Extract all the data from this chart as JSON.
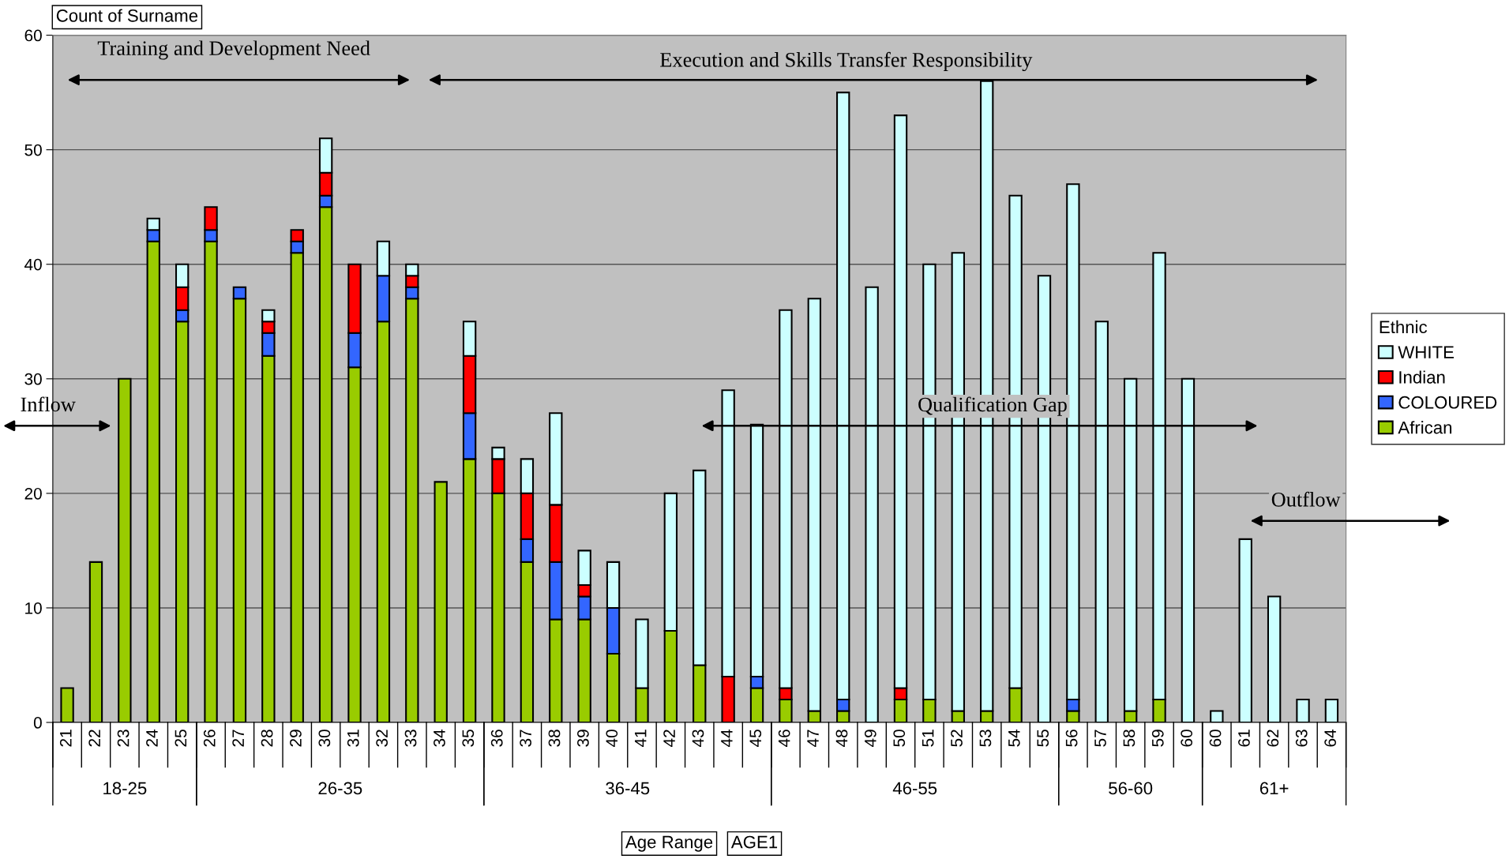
{
  "chart_data": {
    "type": "bar",
    "stacked": true,
    "ylabel": "Count of Surname",
    "legend_title": "Ethnic",
    "legend": "right",
    "grid": "y",
    "categories": [
      "21",
      "22",
      "23",
      "24",
      "25",
      "26",
      "27",
      "28",
      "29",
      "30",
      "31",
      "32",
      "33",
      "34",
      "35",
      "36",
      "37",
      "38",
      "39",
      "40",
      "41",
      "42",
      "43",
      "44",
      "45",
      "46",
      "47",
      "48",
      "49",
      "50",
      "51",
      "52",
      "53",
      "54",
      "55",
      "56",
      "57",
      "58",
      "59",
      "60",
      "60",
      "61",
      "62",
      "63",
      "64"
    ],
    "ylim": [
      0,
      60
    ],
    "yticks": [
      0,
      10,
      20,
      30,
      40,
      50,
      60
    ],
    "series": [
      {
        "name": "African",
        "color": "#99cc00",
        "values": [
          3,
          14,
          30,
          42,
          35,
          42,
          37,
          32,
          41,
          45,
          31,
          35,
          37,
          21,
          23,
          20,
          14,
          9,
          9,
          6,
          3,
          8,
          5,
          0,
          3,
          2,
          1,
          1,
          0,
          2,
          2,
          1,
          1,
          3,
          0,
          1,
          0,
          1,
          2,
          0,
          0,
          0,
          0,
          0,
          0
        ]
      },
      {
        "name": "COLOURED",
        "color": "#3366ff",
        "values": [
          0,
          0,
          0,
          1,
          1,
          1,
          1,
          2,
          1,
          1,
          3,
          4,
          1,
          0,
          4,
          0,
          2,
          5,
          2,
          4,
          0,
          0,
          0,
          0,
          1,
          0,
          0,
          1,
          0,
          0,
          0,
          0,
          0,
          0,
          0,
          1,
          0,
          0,
          0,
          0,
          0,
          0,
          0,
          0,
          0
        ]
      },
      {
        "name": "Indian",
        "color": "#ff0000",
        "values": [
          0,
          0,
          0,
          0,
          2,
          2,
          0,
          1,
          1,
          2,
          6,
          0,
          1,
          0,
          5,
          3,
          4,
          5,
          1,
          0,
          0,
          0,
          0,
          4,
          0,
          1,
          0,
          0,
          0,
          1,
          0,
          0,
          0,
          0,
          0,
          0,
          0,
          0,
          0,
          0,
          0,
          0,
          0,
          0,
          0
        ]
      },
      {
        "name": "WHITE",
        "color": "#ccffff",
        "values": [
          0,
          0,
          0,
          1,
          2,
          0,
          0,
          1,
          0,
          3,
          0,
          3,
          1,
          0,
          3,
          1,
          3,
          8,
          3,
          4,
          6,
          12,
          17,
          25,
          22,
          33,
          36,
          53,
          38,
          50,
          38,
          40,
          55,
          43,
          39,
          45,
          35,
          29,
          39,
          30,
          1,
          16,
          11,
          2,
          2
        ]
      }
    ],
    "annotations": [
      "18-25",
      "26-35",
      "36-45",
      "46-55",
      "56-60",
      "61+",
      "Training and Development Need",
      "Execution and Skills Transfer Responsibility",
      "Inflow",
      "Qualification Gap",
      "Outflow",
      "Age Range",
      "AGE1"
    ]
  }
}
